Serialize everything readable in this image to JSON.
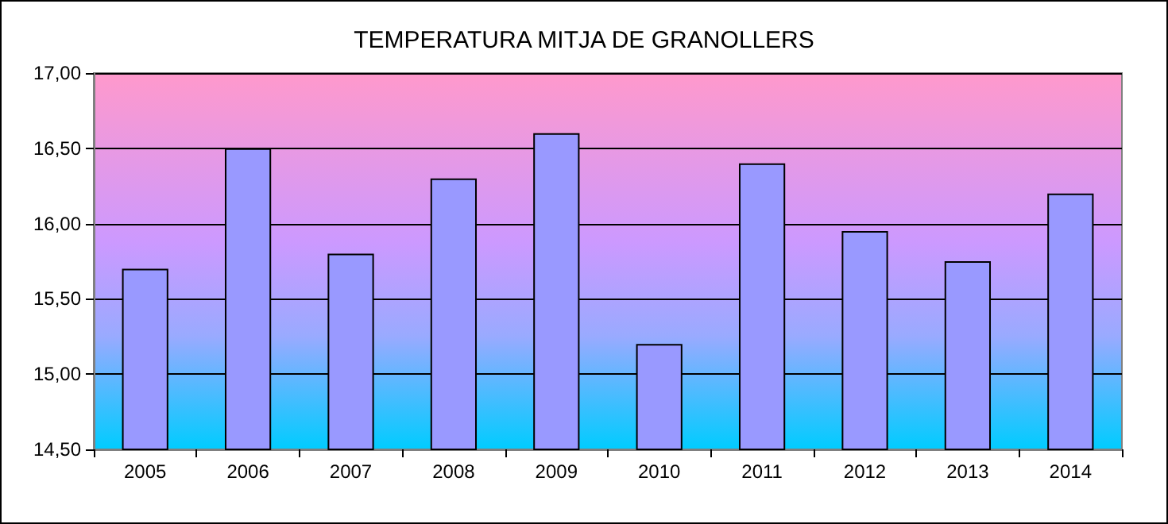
{
  "chart_data": {
    "type": "bar",
    "title": "TEMPERATURA MITJA DE GRANOLLERS",
    "categories": [
      "2005",
      "2006",
      "2007",
      "2008",
      "2009",
      "2010",
      "2011",
      "2012",
      "2013",
      "2014"
    ],
    "values": [
      15.7,
      16.5,
      15.8,
      16.3,
      16.6,
      15.2,
      16.4,
      15.95,
      15.75,
      16.2
    ],
    "color": "#9999ff",
    "ylim": [
      14.5,
      17
    ],
    "yticks": [
      {
        "value": 14.5,
        "label": "14,50"
      },
      {
        "value": 15,
        "label": "15,00"
      },
      {
        "value": 15.5,
        "label": "15,50"
      },
      {
        "value": 16,
        "label": "16,00"
      },
      {
        "value": 16.5,
        "label": "16,50"
      },
      {
        "value": 17,
        "label": "17,00"
      }
    ],
    "grid": "y"
  }
}
